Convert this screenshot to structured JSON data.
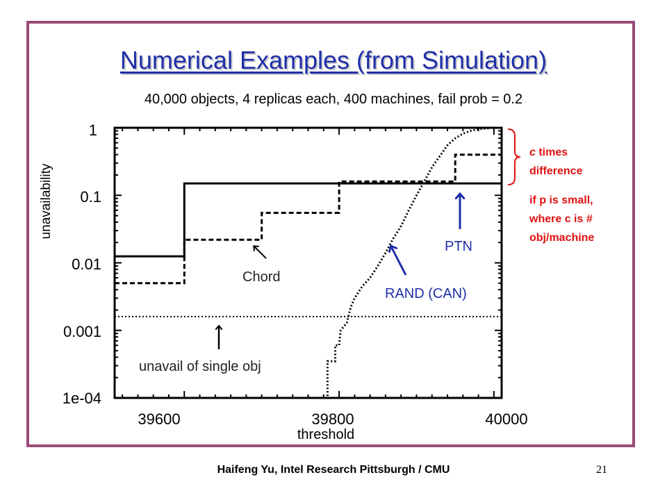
{
  "slide": {
    "title": "Numerical Examples (from Simulation)",
    "subtitle": "40,000 objects, 4 replicas each, 400 machines, fail prob = 0.2",
    "footer": "Haifeng Yu, Intel Research Pittsburgh / CMU",
    "page_number": "21",
    "note_line1_italic": "c",
    "note_line1_rest": " times",
    "note_line2": "difference",
    "note_line3": "if p is small,",
    "note_line4": "where c is #",
    "note_line5": "obj/machine",
    "colors": {
      "title": "#1f2fa8",
      "frame": "#9a4a78",
      "note": "#e01010",
      "arrow": "#1f2fa8"
    }
  },
  "chart_data": {
    "type": "line",
    "xlabel": "threshold",
    "ylabel": "unavailability",
    "xlim": [
      39510,
      40010
    ],
    "ylim": [
      0.0001,
      1
    ],
    "y_log_scale": true,
    "x_ticks": [
      39600,
      39800,
      40000
    ],
    "x_tick_labels": [
      "39600",
      "39800",
      "40000"
    ],
    "y_ticks": [
      1,
      0.1,
      0.01,
      0.001,
      0.0001
    ],
    "y_tick_labels": [
      "1",
      "0.1",
      "0.01",
      "0.001",
      "1e-04"
    ],
    "series": [
      {
        "name": "PTN",
        "style": "solid",
        "x": [
          39510,
          39600,
          39600,
          40010
        ],
        "y": [
          0.0125,
          0.0125,
          0.15,
          0.15
        ]
      },
      {
        "name": "Chord",
        "style": "dashed",
        "x": [
          39510,
          39600,
          39600,
          39700,
          39700,
          39800,
          39800,
          39950,
          39950,
          40010
        ],
        "y": [
          0.005,
          0.005,
          0.022,
          0.022,
          0.055,
          0.055,
          0.16,
          0.16,
          0.4,
          0.4
        ]
      },
      {
        "name": "RAND (CAN)",
        "style": "dotted",
        "x": [
          39783,
          39785,
          39785,
          39795,
          39795,
          39800,
          39802,
          39810,
          39815,
          39820,
          39830,
          39840,
          39850,
          39860,
          39870,
          39880,
          39890,
          39900,
          39910,
          39920,
          39930,
          39940,
          39950,
          39960,
          39970,
          39980,
          39990,
          39995
        ],
        "y": [
          0.0001,
          0.0001,
          0.00035,
          0.00035,
          0.0006,
          0.0006,
          0.001,
          0.0013,
          0.0022,
          0.003,
          0.0045,
          0.006,
          0.009,
          0.014,
          0.023,
          0.035,
          0.06,
          0.1,
          0.16,
          0.26,
          0.38,
          0.55,
          0.7,
          0.82,
          0.9,
          0.95,
          0.98,
          0.99
        ]
      },
      {
        "name": "unavail of single obj",
        "style": "dotted",
        "x": [
          39510,
          40010
        ],
        "y": [
          0.0016,
          0.0016
        ]
      }
    ],
    "annotations": [
      "Chord",
      "RAND (CAN)",
      "PTN",
      "unavail of single obj"
    ]
  }
}
